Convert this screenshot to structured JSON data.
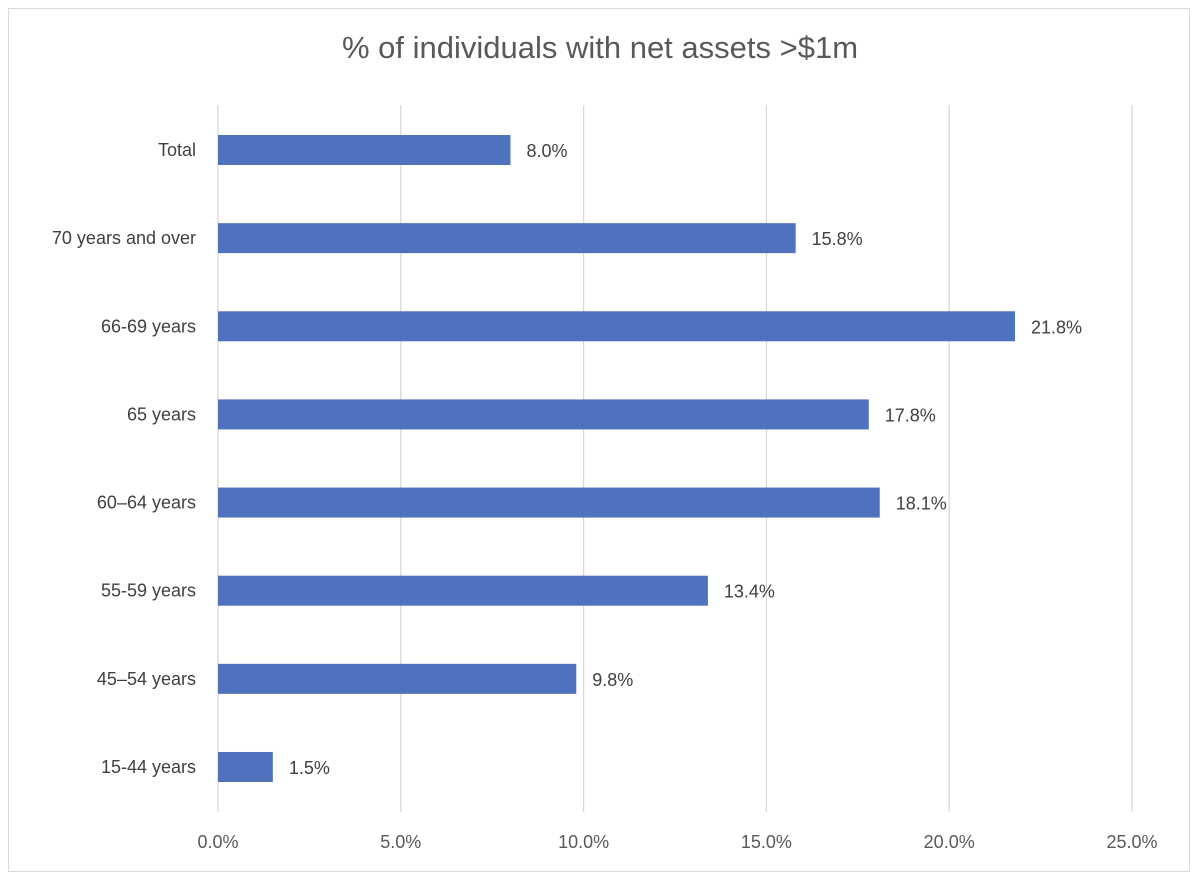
{
  "chart_data": {
    "type": "bar",
    "orientation": "horizontal",
    "title": "% of individuals with net assets >$1m",
    "categories": [
      "Total",
      "70 years and over",
      "66-69 years",
      "65 years",
      "60–64  years",
      "55-59 years",
      "45–54  years",
      "15-44 years"
    ],
    "values": [
      8.0,
      15.8,
      21.8,
      17.8,
      18.1,
      13.4,
      9.8,
      1.5
    ],
    "data_labels": [
      "8.0%",
      "15.8%",
      "21.8%",
      "17.8%",
      "18.1%",
      "13.4%",
      "9.8%",
      "1.5%"
    ],
    "xlim": [
      0,
      25
    ],
    "x_ticks": [
      0,
      5,
      10,
      15,
      20,
      25
    ],
    "x_tick_labels": [
      "0.0%",
      "5.0%",
      "10.0%",
      "15.0%",
      "20.0%",
      "25.0%"
    ],
    "xlabel": "",
    "ylabel": "",
    "grid": "vertical",
    "legend": "none",
    "bar_color": "#4e72be",
    "grid_color": "#d9d9d9"
  }
}
